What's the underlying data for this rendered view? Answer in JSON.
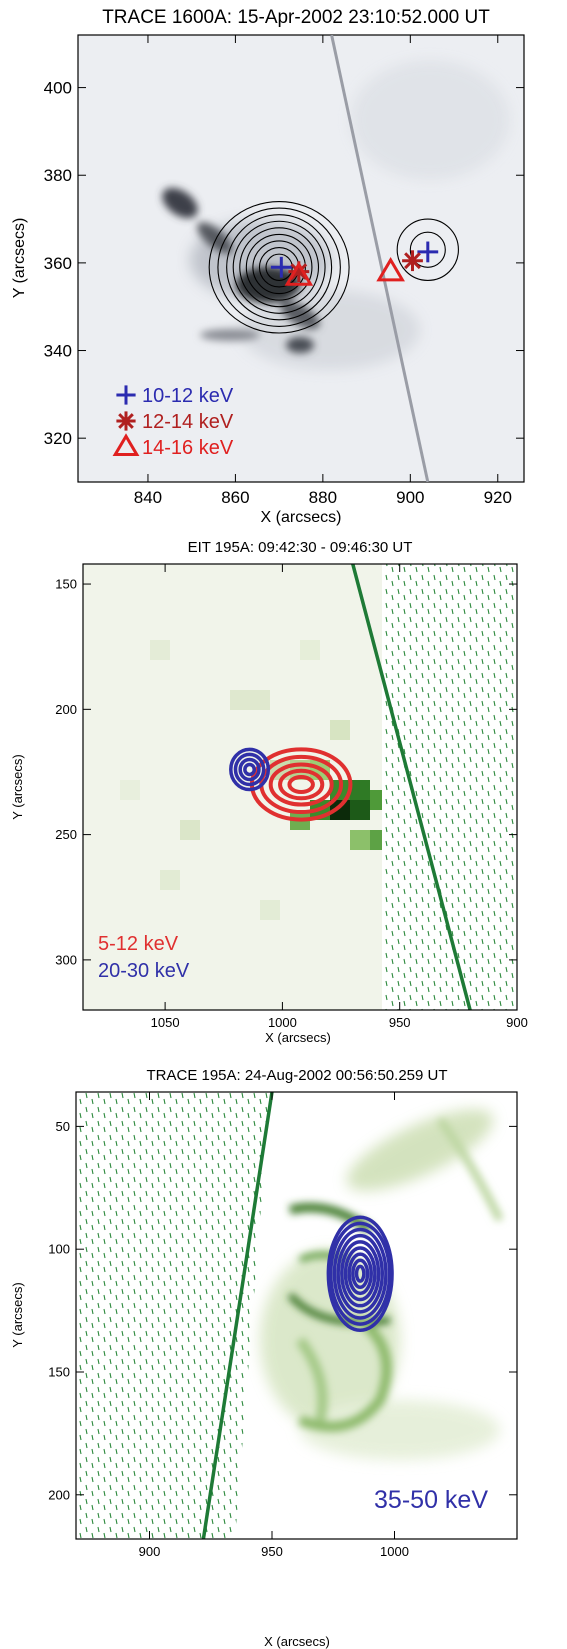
{
  "chart_data": [
    {
      "type": "image-contour",
      "title": "TRACE 1600A:  15-Apr-2002 23:10:52.000 UT",
      "xlabel": "X (arcsecs)",
      "ylabel": "Y (arcsecs)",
      "xlim": [
        824,
        926
      ],
      "ylim": [
        310,
        412
      ],
      "xticks": [
        840,
        860,
        880,
        900,
        920
      ],
      "yticks": [
        320,
        340,
        360,
        380,
        400
      ],
      "limb_line": [
        [
          882,
          412
        ],
        [
          904,
          310
        ]
      ],
      "contours": {
        "color": "#000000",
        "sources": [
          {
            "cx": 870,
            "cy": 359,
            "rx": [
              3,
              4.5,
              6,
              7.5,
              9,
              10.5,
              12,
              14,
              16
            ],
            "ry": [
              3,
              4.5,
              6,
              7.5,
              9,
              10.5,
              12,
              13.5,
              15
            ]
          },
          {
            "cx": 904,
            "cy": 363,
            "rx": [
              4,
              7
            ],
            "ry": [
              4,
              7
            ]
          }
        ]
      },
      "markers": [
        {
          "band": "10-12 keV",
          "symbol": "plus",
          "color": "#2b2bb0",
          "points": [
            [
              870.5,
              359
            ],
            [
              904,
              362.5
            ]
          ]
        },
        {
          "band": "12-14 keV",
          "symbol": "asterisk",
          "color": "#b02020",
          "points": [
            [
              874.5,
              358
            ],
            [
              900.5,
              360.5
            ]
          ]
        },
        {
          "band": "14-16 keV",
          "symbol": "triangle",
          "color": "#e02020",
          "points": [
            [
              874.5,
              357
            ],
            [
              895.5,
              358
            ]
          ]
        }
      ],
      "legend": [
        {
          "label": "10-12 keV",
          "symbol": "plus",
          "color": "#2b2bb0"
        },
        {
          "label": "12-14 keV",
          "symbol": "asterisk",
          "color": "#b02020"
        },
        {
          "label": "14-16 keV",
          "symbol": "triangle",
          "color": "#e02020"
        }
      ],
      "legend_position": "bottom-left"
    },
    {
      "type": "image-contour",
      "title": "EIT 195A: 09:42:30 - 09:46:30 UT",
      "xlabel": "X (arcsecs)",
      "ylabel": "Y (arcsecs)",
      "xlim": [
        1085,
        900
      ],
      "ylim": [
        320,
        142
      ],
      "xticks": [
        1050,
        1000,
        950,
        900
      ],
      "yticks": [
        150,
        200,
        250,
        300
      ],
      "limb_line": [
        [
          970,
          142
        ],
        [
          920,
          320
        ]
      ],
      "red_contours": {
        "label": "5-12 keV",
        "color": "#e03030",
        "cx": 992,
        "cy": 230,
        "rx": [
          5,
          9,
          13,
          17,
          21
        ],
        "ry": [
          3,
          5.5,
          8,
          11,
          14
        ]
      },
      "blue_contours": {
        "label": "20-30 keV",
        "color": "#3030a8",
        "cx": 1014,
        "cy": 224,
        "rx": [
          2,
          4,
          6,
          8
        ],
        "ry": [
          2,
          4,
          6,
          8
        ]
      },
      "legend": [
        {
          "label": "5-12 keV",
          "color": "#e03030"
        },
        {
          "label": "20-30 keV",
          "color": "#3030a8"
        }
      ],
      "legend_position": "bottom-left"
    },
    {
      "type": "image-contour",
      "title": "TRACE 195A:  24-Aug-2002 00:56:50.259 UT",
      "xlabel": "X (arcsecs)",
      "ylabel": "Y (arcsecs)",
      "xlim": [
        870,
        1050
      ],
      "ylim": [
        218,
        36
      ],
      "xticks": [
        900,
        950,
        1000
      ],
      "yticks": [
        50,
        100,
        150,
        200
      ],
      "limb_line": [
        [
          950,
          36
        ],
        [
          922,
          218
        ]
      ],
      "blue_contours": {
        "label": "35-50 keV",
        "color": "#3030a8",
        "cx": 986,
        "cy": 110,
        "rx": [
          1.5,
          3,
          4.5,
          6,
          7.5,
          9,
          10.5,
          12,
          13
        ],
        "ry": [
          3,
          5.5,
          8,
          10.5,
          13,
          15.5,
          18,
          20.5,
          23
        ]
      },
      "legend": [
        {
          "label": "35-50 keV",
          "color": "#3030a8"
        }
      ],
      "legend_position": "bottom-right"
    }
  ]
}
